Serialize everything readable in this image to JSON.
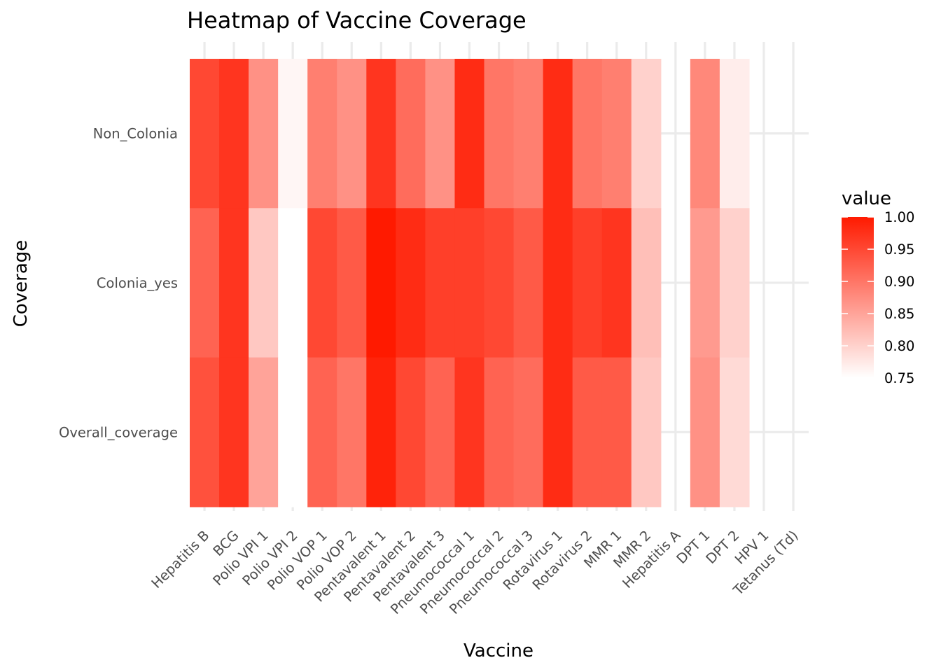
{
  "chart_data": {
    "type": "heatmap",
    "title": "Heatmap of Vaccine Coverage",
    "xlabel": "Vaccine",
    "ylabel": "Coverage",
    "categories": [
      "Hepatitis B",
      "BCG",
      "Polio VPI 1",
      "Polio VPI 2",
      "Polio VOP 1",
      "Polio VOP 2",
      "Pentavalent 1",
      "Pentavalent 2",
      "Pentavalent 3",
      "Pneumococcal 1",
      "Pneumococcal 2",
      "Pneumococcal 3",
      "Rotavirus 1",
      "Rotavirus 2",
      "MMR 1",
      "MMR 2",
      "Hepatitis A",
      "DPT 1",
      "DPT 2",
      "HPV 1",
      "Tetanus (Td)"
    ],
    "rows": [
      "Non_Colonia",
      "Colonia_yes",
      "Overall_coverage"
    ],
    "values": [
      [
        0.95,
        0.97,
        0.87,
        0.76,
        0.89,
        0.87,
        0.97,
        0.91,
        0.87,
        0.98,
        0.9,
        0.89,
        0.98,
        0.9,
        0.89,
        0.8,
        null,
        0.88,
        0.77,
        null,
        null
      ],
      [
        0.92,
        0.97,
        0.81,
        0.73,
        0.95,
        0.93,
        1.0,
        0.98,
        0.96,
        0.96,
        0.95,
        0.93,
        0.98,
        0.96,
        0.97,
        0.82,
        null,
        0.86,
        0.8,
        null,
        null
      ],
      [
        0.94,
        0.97,
        0.85,
        0.74,
        0.92,
        0.9,
        0.99,
        0.95,
        0.92,
        0.97,
        0.92,
        0.91,
        0.98,
        0.93,
        0.93,
        0.81,
        null,
        0.87,
        0.79,
        null,
        null
      ]
    ],
    "legend": {
      "title": "value",
      "position": "right",
      "range": [
        0.75,
        1.0
      ],
      "ticks": [
        "0.75",
        "0.80",
        "0.85",
        "0.90",
        "0.95",
        "1.00"
      ],
      "low_color": "#ffffff",
      "high_color": "#ff1a00"
    }
  }
}
